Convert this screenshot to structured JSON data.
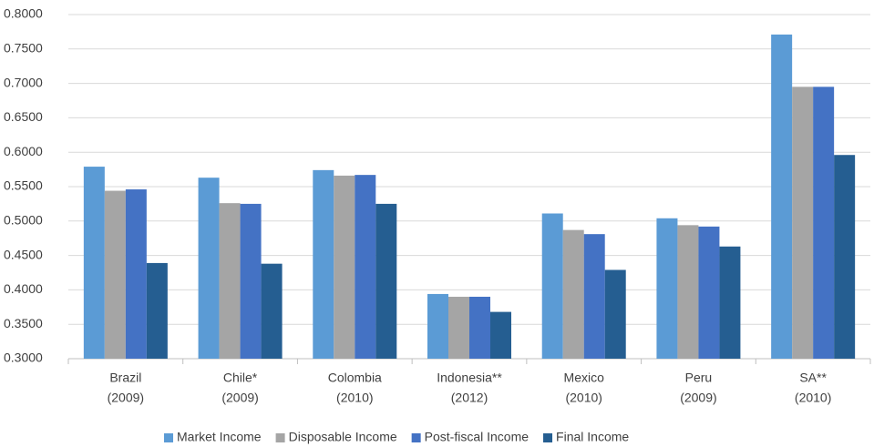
{
  "chart_data": {
    "type": "bar",
    "categories": [
      [
        "Brazil",
        "(2009)"
      ],
      [
        "Chile*",
        "(2009)"
      ],
      [
        "Colombia",
        "(2010)"
      ],
      [
        "Indonesia**",
        "(2012)"
      ],
      [
        "Mexico",
        "(2010)"
      ],
      [
        "Peru",
        "(2009)"
      ],
      [
        "SA**",
        "(2010)"
      ]
    ],
    "series": [
      {
        "name": "Market Income",
        "color": "#5b9bd5",
        "values": [
          0.579,
          0.563,
          0.574,
          0.394,
          0.511,
          0.504,
          0.771
        ]
      },
      {
        "name": "Disposable Income",
        "color": "#a5a5a5",
        "values": [
          0.544,
          0.526,
          0.566,
          0.39,
          0.487,
          0.494,
          0.695
        ]
      },
      {
        "name": "Post-fiscal Income",
        "color": "#4472c4",
        "values": [
          0.546,
          0.525,
          0.567,
          0.39,
          0.481,
          0.492,
          0.695
        ]
      },
      {
        "name": "Final Income",
        "color": "#255e91",
        "values": [
          0.439,
          0.438,
          0.525,
          0.368,
          0.429,
          0.463,
          0.596
        ]
      }
    ],
    "ylim": [
      0.3,
      0.8
    ],
    "yticks": [
      {
        "value": 0.3,
        "label": "0.3000"
      },
      {
        "value": 0.35,
        "label": "0.3500"
      },
      {
        "value": 0.4,
        "label": "0.4000"
      },
      {
        "value": 0.45,
        "label": "0.4500"
      },
      {
        "value": 0.5,
        "label": "0.5000"
      },
      {
        "value": 0.55,
        "label": "0.5500"
      },
      {
        "value": 0.6,
        "label": "0.6000"
      },
      {
        "value": 0.65,
        "label": "0.6500"
      },
      {
        "value": 0.7,
        "label": "0.7000"
      },
      {
        "value": 0.75,
        "label": "0.7500"
      },
      {
        "value": 0.8,
        "label": "0.8000"
      }
    ],
    "grid": true,
    "legend": "bottom"
  }
}
